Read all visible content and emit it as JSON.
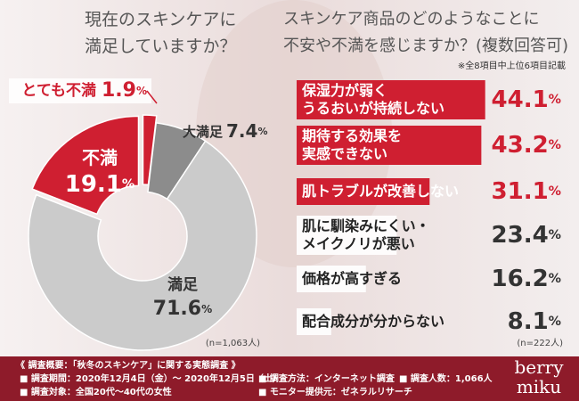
{
  "chart_data": [
    {
      "type": "pie",
      "title": "現在のスキンケアに\n満足していますか？",
      "categories": [
        "とても不満",
        "大満足",
        "満足",
        "不満"
      ],
      "values": [
        1.9,
        7.4,
        71.6,
        19.1
      ],
      "value_labels": [
        "1.9%",
        "7.4%",
        "71.6%",
        "19.1%"
      ],
      "colors": [
        "#cf1f31",
        "#8c8c8c",
        "#cbcbcb",
        "#cf1f31"
      ],
      "explode": [
        true,
        false,
        false,
        true
      ],
      "note": "(n=1,063人)"
    },
    {
      "type": "bar",
      "title": "スキンケア商品のどのようなことに\n不安や不満を感じますか？(複数回答可)",
      "subnote": "※全8項目中上位6項目記載",
      "categories": [
        "保湿力が弱く\nうるおいが持続しない",
        "期待する効果を\n実感できない",
        "肌トラブルが改善しない",
        "肌に馴染みにくい・\nメイクノリが悪い",
        "価格が高すぎる",
        "配合成分が分からない"
      ],
      "values": [
        44.1,
        43.2,
        31.1,
        23.4,
        16.2,
        8.1
      ],
      "value_labels": [
        "44.1%",
        "43.2%",
        "31.1%",
        "23.4%",
        "16.2%",
        "8.1%"
      ],
      "colors": [
        "#cf1f31",
        "#cf1f31",
        "#cf1f31",
        "#ffffff",
        "#ffffff",
        "#ffffff"
      ],
      "xlim": [
        0,
        50
      ],
      "note": "(n=222人)"
    }
  ],
  "survey": {
    "heading": "《 調査概要：「秋冬のスキンケア」に関する実態調査 》",
    "items": [
      "■ 調査期間：2020年12月4日（金）〜 2020年12月5日（土）",
      "■ 調査方法：インターネット調査",
      "■ 調査人数：1,066人",
      "■ 調査対象：全国20代〜40代の女性",
      "■ モニター提供元：ゼネラルリサーチ"
    ]
  },
  "brand": [
    "berry",
    "miku"
  ]
}
